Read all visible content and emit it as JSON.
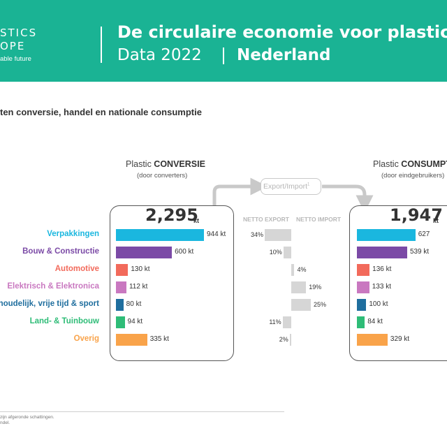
{
  "header": {
    "logo_line1": "STICS",
    "logo_line2": "OPE",
    "logo_line3": "able future",
    "title": "De circulaire economie voor plastics",
    "year": "Data 2022",
    "country": "Nederland"
  },
  "subtitle": "ten conversie, handel en nationale consumptie",
  "conversion": {
    "title_prefix": "Plastic ",
    "title_bold": "CONVERSIE",
    "sub": "(door converters)",
    "total": "2,295",
    "unit": "kt"
  },
  "consumption": {
    "title_prefix": "Plastic ",
    "title_bold": "CONSUMPTIE",
    "sub": "(door eindgebruikers)",
    "total": "1,947",
    "unit": "kt"
  },
  "trade": {
    "label": "Export/Import",
    "sup": "1",
    "netto_export": "NETTO EXPORT",
    "netto_import": "NETTO IMPORT"
  },
  "footnote": {
    "line1": "zijn afgeronde schattingen.",
    "line2": "ndel."
  },
  "chart_data": {
    "type": "bar",
    "unit": "kt",
    "categories": [
      {
        "label": "Verpakkingen",
        "color": "#1ab7df"
      },
      {
        "label": "Bouw & Constructie",
        "color": "#7b4aa6"
      },
      {
        "label": "Automotive",
        "color": "#f26a5b"
      },
      {
        "label": "Elektrisch & Elektronica",
        "color": "#c978c0"
      },
      {
        "label": "shoudelijk, vrije tijd & sport",
        "color": "#1f6e9e"
      },
      {
        "label": "Land- & Tuinbouw",
        "color": "#2ebc77"
      },
      {
        "label": "Overig",
        "color": "#f9a34a"
      }
    ],
    "series": [
      {
        "name": "Plastic CONVERSIE",
        "values": [
          944,
          600,
          130,
          112,
          80,
          94,
          335
        ],
        "labels": [
          "944 kt",
          "600 kt",
          "130 kt",
          "112 kt",
          "80 kt",
          "94 kt",
          "335 kt"
        ]
      },
      {
        "name": "Plastic CONSUMPTIE",
        "values": [
          627,
          539,
          136,
          133,
          100,
          84,
          329
        ],
        "labels": [
          "627",
          "539 kt",
          "136 kt",
          "133 kt",
          "100 kt",
          "84 kt",
          "329 kt"
        ]
      }
    ],
    "trade_percent": {
      "direction": [
        "export",
        "export",
        "import",
        "import",
        "import",
        "export",
        "export"
      ],
      "values": [
        34,
        10,
        4,
        19,
        25,
        11,
        2
      ],
      "labels": [
        "34%",
        "10%",
        "4%",
        "19%",
        "25%",
        "11%",
        "2%"
      ]
    },
    "trade_color": "#d6d6d6"
  }
}
